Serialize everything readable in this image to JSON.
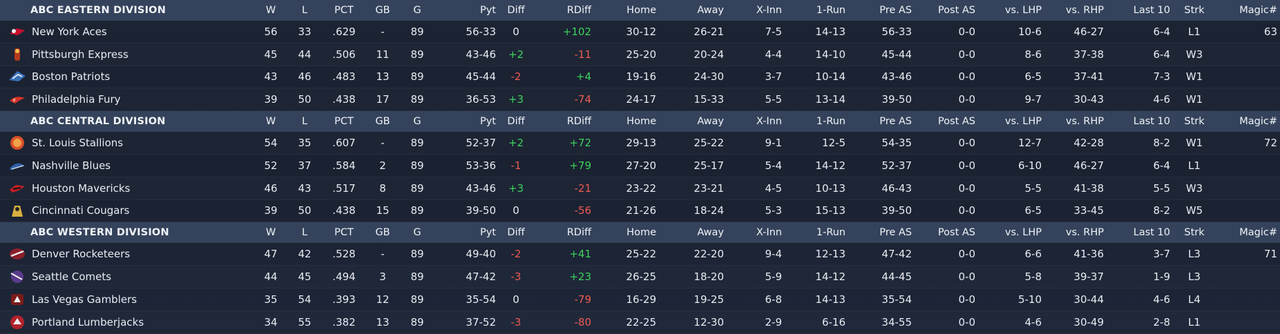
{
  "columns": [
    "W",
    "L",
    "PCT",
    "GB",
    "G",
    "Pyt",
    "Diff",
    "RDiff",
    "Home",
    "Away",
    "X-Inn",
    "1-Run",
    "Pre AS",
    "Post AS",
    "vs. LHP",
    "vs. RHP",
    "Last 10",
    "Strk",
    "Magic#"
  ],
  "divisions": [
    {
      "name": "ABC EASTERN DIVISION",
      "magic": "63",
      "teams": [
        {
          "name": "New York Aces",
          "logo": "aces-logo-icon",
          "W": "56",
          "L": "33",
          "PCT": ".629",
          "GB": "-",
          "G": "89",
          "Pyt": "56-33",
          "Diff": "0",
          "RDiff": "+102",
          "Home": "30-12",
          "Away": "26-21",
          "XInn": "7-5",
          "OneRun": "14-13",
          "PreAS": "56-33",
          "PostAS": "0-0",
          "vsLHP": "10-6",
          "vsRHP": "46-27",
          "Last10": "6-4",
          "Strk": "L1"
        },
        {
          "name": "Pittsburgh Express",
          "logo": "express-logo-icon",
          "W": "45",
          "L": "44",
          "PCT": ".506",
          "GB": "11",
          "G": "89",
          "Pyt": "43-46",
          "Diff": "+2",
          "RDiff": "-11",
          "Home": "25-20",
          "Away": "20-24",
          "XInn": "4-4",
          "OneRun": "14-10",
          "PreAS": "45-44",
          "PostAS": "0-0",
          "vsLHP": "8-6",
          "vsRHP": "37-38",
          "Last10": "6-4",
          "Strk": "W3"
        },
        {
          "name": "Boston Patriots",
          "logo": "patriots-logo-icon",
          "W": "43",
          "L": "46",
          "PCT": ".483",
          "GB": "13",
          "G": "89",
          "Pyt": "45-44",
          "Diff": "-2",
          "RDiff": "+4",
          "Home": "19-16",
          "Away": "24-30",
          "XInn": "3-7",
          "OneRun": "10-14",
          "PreAS": "43-46",
          "PostAS": "0-0",
          "vsLHP": "6-5",
          "vsRHP": "37-41",
          "Last10": "7-3",
          "Strk": "W1"
        },
        {
          "name": "Philadelphia Fury",
          "logo": "fury-logo-icon",
          "W": "39",
          "L": "50",
          "PCT": ".438",
          "GB": "17",
          "G": "89",
          "Pyt": "36-53",
          "Diff": "+3",
          "RDiff": "-74",
          "Home": "24-17",
          "Away": "15-33",
          "XInn": "5-5",
          "OneRun": "13-14",
          "PreAS": "39-50",
          "PostAS": "0-0",
          "vsLHP": "9-7",
          "vsRHP": "30-43",
          "Last10": "4-6",
          "Strk": "W1"
        }
      ]
    },
    {
      "name": "ABC CENTRAL DIVISION",
      "magic": "72",
      "teams": [
        {
          "name": "St. Louis Stallions",
          "logo": "stallions-logo-icon",
          "W": "54",
          "L": "35",
          "PCT": ".607",
          "GB": "-",
          "G": "89",
          "Pyt": "52-37",
          "Diff": "+2",
          "RDiff": "+72",
          "Home": "29-13",
          "Away": "25-22",
          "XInn": "9-1",
          "OneRun": "12-5",
          "PreAS": "54-35",
          "PostAS": "0-0",
          "vsLHP": "12-7",
          "vsRHP": "42-28",
          "Last10": "8-2",
          "Strk": "W1"
        },
        {
          "name": "Nashville Blues",
          "logo": "blues-logo-icon",
          "W": "52",
          "L": "37",
          "PCT": ".584",
          "GB": "2",
          "G": "89",
          "Pyt": "53-36",
          "Diff": "-1",
          "RDiff": "+79",
          "Home": "27-20",
          "Away": "25-17",
          "XInn": "5-4",
          "OneRun": "14-12",
          "PreAS": "52-37",
          "PostAS": "0-0",
          "vsLHP": "6-10",
          "vsRHP": "46-27",
          "Last10": "6-4",
          "Strk": "L1"
        },
        {
          "name": "Houston Mavericks",
          "logo": "mavericks-logo-icon",
          "W": "46",
          "L": "43",
          "PCT": ".517",
          "GB": "8",
          "G": "89",
          "Pyt": "43-46",
          "Diff": "+3",
          "RDiff": "-21",
          "Home": "23-22",
          "Away": "23-21",
          "XInn": "4-5",
          "OneRun": "10-13",
          "PreAS": "46-43",
          "PostAS": "0-0",
          "vsLHP": "5-5",
          "vsRHP": "41-38",
          "Last10": "5-5",
          "Strk": "W3"
        },
        {
          "name": "Cincinnati Cougars",
          "logo": "cougars-logo-icon",
          "W": "39",
          "L": "50",
          "PCT": ".438",
          "GB": "15",
          "G": "89",
          "Pyt": "39-50",
          "Diff": "0",
          "RDiff": "-56",
          "Home": "21-26",
          "Away": "18-24",
          "XInn": "5-3",
          "OneRun": "15-13",
          "PreAS": "39-50",
          "PostAS": "0-0",
          "vsLHP": "6-5",
          "vsRHP": "33-45",
          "Last10": "8-2",
          "Strk": "W5"
        }
      ]
    },
    {
      "name": "ABC WESTERN DIVISION",
      "magic": "71",
      "teams": [
        {
          "name": "Denver Rocketeers",
          "logo": "rocketeers-logo-icon",
          "W": "47",
          "L": "42",
          "PCT": ".528",
          "GB": "-",
          "G": "89",
          "Pyt": "49-40",
          "Diff": "-2",
          "RDiff": "+41",
          "Home": "25-22",
          "Away": "22-20",
          "XInn": "9-4",
          "OneRun": "12-13",
          "PreAS": "47-42",
          "PostAS": "0-0",
          "vsLHP": "6-6",
          "vsRHP": "41-36",
          "Last10": "3-7",
          "Strk": "L3"
        },
        {
          "name": "Seattle Comets",
          "logo": "comets-logo-icon",
          "W": "44",
          "L": "45",
          "PCT": ".494",
          "GB": "3",
          "G": "89",
          "Pyt": "47-42",
          "Diff": "-3",
          "RDiff": "+23",
          "Home": "26-25",
          "Away": "18-20",
          "XInn": "5-9",
          "OneRun": "14-12",
          "PreAS": "44-45",
          "PostAS": "0-0",
          "vsLHP": "5-8",
          "vsRHP": "39-37",
          "Last10": "1-9",
          "Strk": "L3"
        },
        {
          "name": "Las Vegas Gamblers",
          "logo": "gamblers-logo-icon",
          "W": "35",
          "L": "54",
          "PCT": ".393",
          "GB": "12",
          "G": "89",
          "Pyt": "35-54",
          "Diff": "0",
          "RDiff": "-79",
          "Home": "16-29",
          "Away": "19-25",
          "XInn": "6-8",
          "OneRun": "14-13",
          "PreAS": "35-54",
          "PostAS": "0-0",
          "vsLHP": "5-10",
          "vsRHP": "30-44",
          "Last10": "4-6",
          "Strk": "L4"
        },
        {
          "name": "Portland Lumberjacks",
          "logo": "lumberjacks-logo-icon",
          "W": "34",
          "L": "55",
          "PCT": ".382",
          "GB": "13",
          "G": "89",
          "Pyt": "37-52",
          "Diff": "-3",
          "RDiff": "-80",
          "Home": "22-25",
          "Away": "12-30",
          "XInn": "2-9",
          "OneRun": "6-16",
          "PreAS": "34-55",
          "PostAS": "0-0",
          "vsLHP": "4-6",
          "vsRHP": "30-49",
          "Last10": "2-8",
          "Strk": "L1"
        }
      ]
    }
  ],
  "colors": {
    "positive": "#3ed35e",
    "negative": "#ef5a52",
    "header": "#34435b"
  }
}
